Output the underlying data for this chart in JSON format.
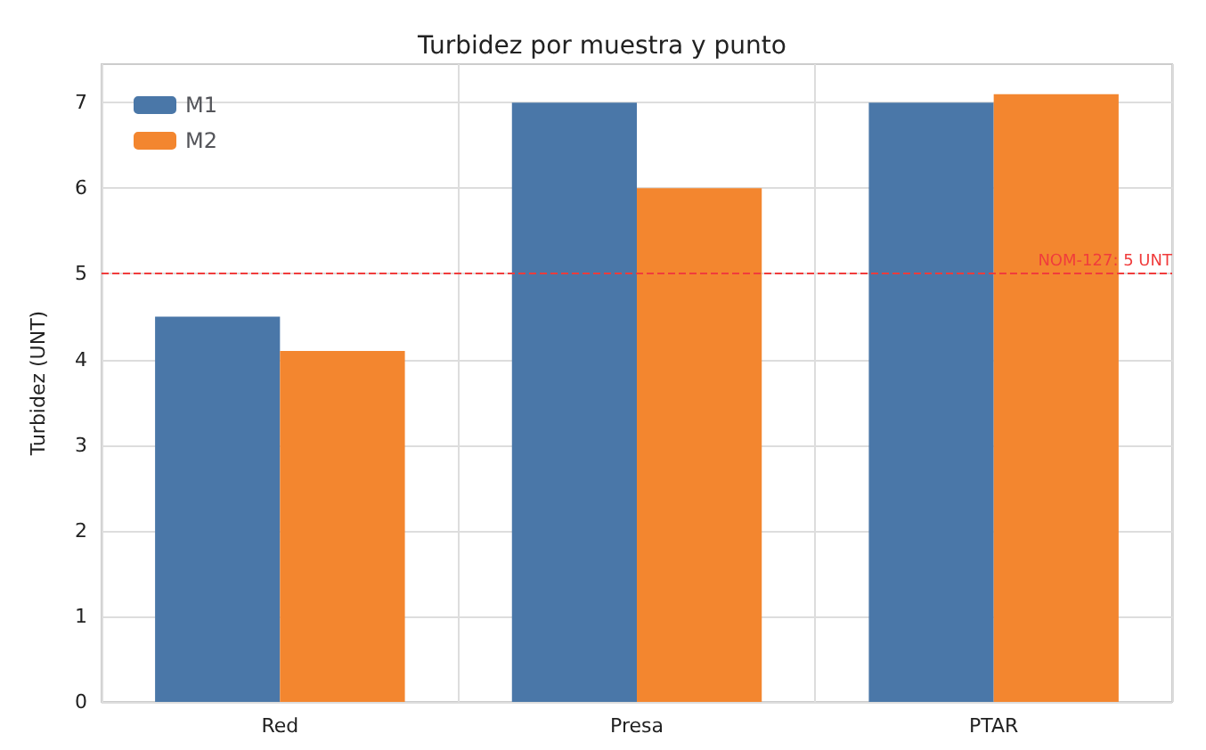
{
  "chart_data": {
    "type": "bar",
    "title": "Turbidez por muestra y punto",
    "ylabel": "Turbidez (UNT)",
    "categories": [
      "Red",
      "Presa",
      "PTAR"
    ],
    "series": [
      {
        "name": "M1",
        "color": "#4a77a8",
        "values": [
          4.5,
          7,
          7
        ]
      },
      {
        "name": "M2",
        "color": "#f3862f",
        "values": [
          4.1,
          6,
          7.1
        ]
      }
    ],
    "ylim": [
      0,
      7.45
    ],
    "yticks": [
      0,
      1,
      2,
      3,
      4,
      5,
      6,
      7
    ],
    "ref_lines": [
      {
        "axis": "y",
        "value": 5,
        "label": "NOM-127: 5 UNT",
        "color": "#f03c3c",
        "line_style": "dashed"
      }
    ],
    "grid": true,
    "legend": "top left"
  }
}
